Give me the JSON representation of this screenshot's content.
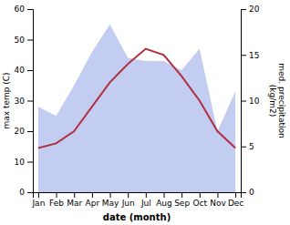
{
  "chart_data": {
    "type": "line",
    "categories": [
      "Jan",
      "Feb",
      "Mar",
      "Apr",
      "May",
      "Jun",
      "Jul",
      "Aug",
      "Sep",
      "Oct",
      "Nov",
      "Dec"
    ],
    "series": [
      {
        "type": "area",
        "color": "#b8c4ee",
        "values": [
          28,
          25,
          35,
          46,
          55,
          44,
          43,
          43,
          40,
          47,
          20,
          33
        ]
      },
      {
        "type": "line",
        "color": "#b03040",
        "values": [
          14.5,
          16.0,
          20.0,
          28.0,
          36.0,
          42.0,
          47.0,
          45.0,
          38.0,
          30.0,
          20.0,
          14.5
        ]
      }
    ],
    "x_label": "date (month)",
    "y_label": "max temp (C)",
    "y2_label": "med. precipitation\n(kg/m2)",
    "ylim": [
      0,
      60
    ],
    "yticks": [
      0,
      10,
      20,
      30,
      40,
      50,
      60
    ],
    "y2lim": [
      0,
      20
    ],
    "y2ticks": [
      0,
      5,
      10,
      15,
      20
    ],
    "grid": false
  }
}
